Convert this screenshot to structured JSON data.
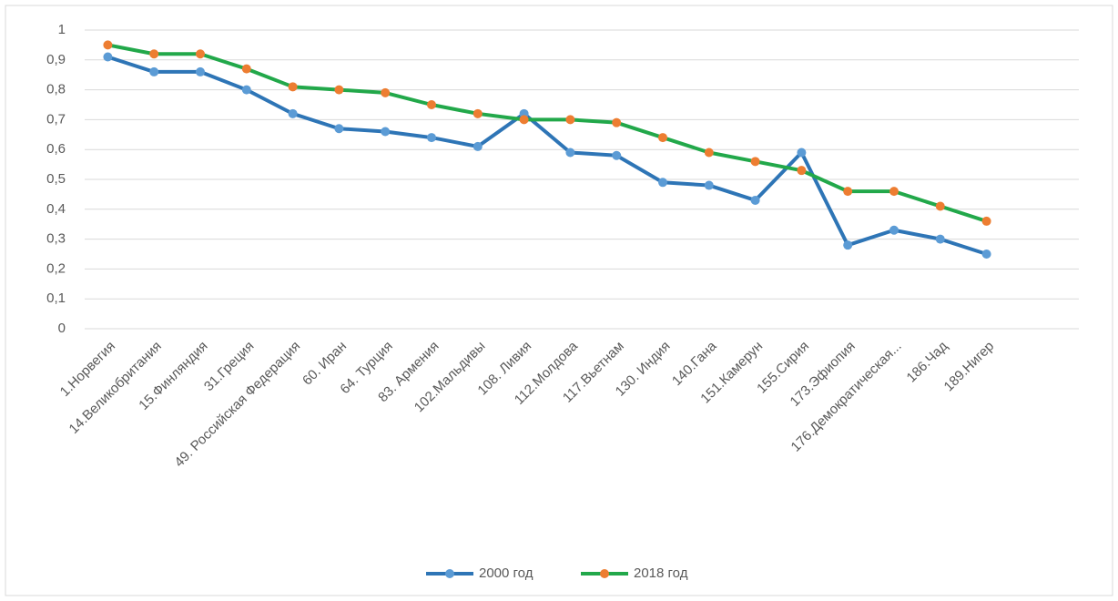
{
  "chart_data": {
    "type": "line",
    "categories": [
      "1.Норвегия",
      "14.Великобритания",
      "15.Финляндия",
      "31.Греция",
      "49. Российская Федерация",
      "60. Иран",
      "64. Турция",
      "83. Армения",
      "102.Мальдивы",
      "108. Ливия",
      "112.Молдова",
      "117.Вьетнам",
      "130. Индия",
      "140.Гана",
      "151.Камерун",
      "155.Сирия",
      "173.Эфиопия",
      "176.Демократическая...",
      "186.Чад",
      "189.Нигер"
    ],
    "series": [
      {
        "name": "2000 год",
        "color": "#2e75b6",
        "marker_color": "#5b9bd5",
        "values": [
          0.91,
          0.86,
          0.86,
          0.8,
          0.72,
          0.67,
          0.66,
          0.64,
          0.61,
          0.72,
          0.59,
          0.58,
          0.49,
          0.48,
          0.43,
          0.59,
          0.28,
          0.33,
          0.3,
          0.25
        ]
      },
      {
        "name": "2018 год",
        "color": "#22a84a",
        "marker_color": "#ed7d31",
        "values": [
          0.95,
          0.92,
          0.92,
          0.87,
          0.81,
          0.8,
          0.79,
          0.75,
          0.72,
          0.7,
          0.7,
          0.69,
          0.64,
          0.59,
          0.56,
          0.53,
          0.46,
          0.46,
          0.41,
          0.36
        ]
      }
    ],
    "ylim": [
      0,
      1
    ],
    "yticks": [
      0,
      {
        "value": 0.1,
        "label": "0,1"
      },
      {
        "value": 0.2,
        "label": "0,2"
      },
      {
        "value": 0.3,
        "label": "0,3"
      },
      {
        "value": 0.4,
        "label": "0,4"
      },
      {
        "value": 0.5,
        "label": "0,5"
      },
      {
        "value": 0.6,
        "label": "0,6"
      },
      {
        "value": 0.7,
        "label": "0,7"
      },
      {
        "value": 0.8,
        "label": "0,8"
      },
      {
        "value": 0.9,
        "label": "0,9"
      },
      1
    ],
    "grid": true,
    "legend": "bottom"
  }
}
